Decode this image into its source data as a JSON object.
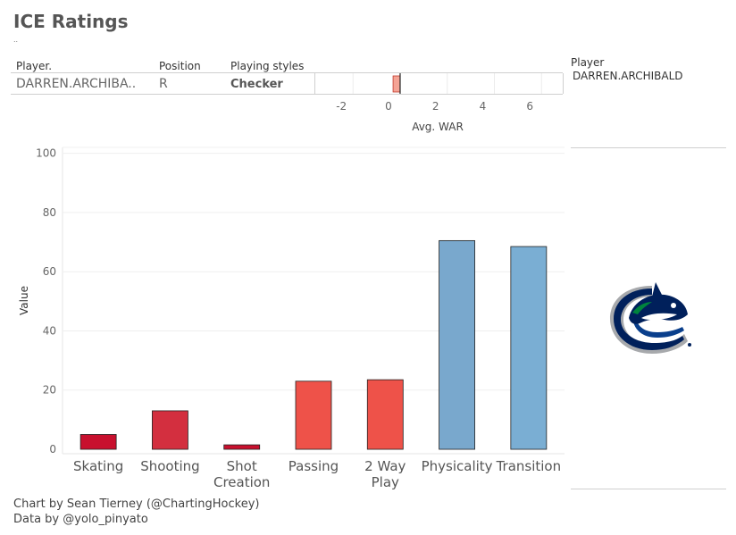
{
  "title": "ICE Ratings",
  "subtitle": "..",
  "table": {
    "headers": {
      "player": "Player.",
      "position": "Position",
      "playing_styles": "Playing styles"
    },
    "row": {
      "player": "DARREN.ARCHIBA..",
      "position": "R",
      "playing_style": "Checker"
    }
  },
  "war_chart": {
    "type": "bar",
    "xlabel": "Avg. WAR",
    "ticks": [
      -2,
      0,
      2,
      4,
      6
    ],
    "xlim": [
      -3.6,
      6.9
    ],
    "value": -0.3,
    "bar_color": "#f4a395",
    "bar_stroke": "#c0392b"
  },
  "side_panel": {
    "player_label": "Player",
    "player_name": "DARREN.ARCHIBALD",
    "logo_icon": "vancouver-canucks-orca-logo",
    "logo_colors": {
      "navy": "#00205b",
      "blue": "#0a3f8c",
      "green": "#00843d",
      "silver": "#a7a9ac"
    }
  },
  "chart_data": {
    "type": "bar",
    "categories": [
      "Skating",
      "Shooting",
      "Shot\nCreation",
      "Passing",
      "2 Way\nPlay",
      "Physicality",
      "Transition"
    ],
    "values": [
      5,
      13,
      1.5,
      23,
      23.5,
      70.5,
      68.5
    ],
    "colors": [
      "#c8102e",
      "#d32f3f",
      "#c8102e",
      "#ee5249",
      "#ee5249",
      "#79a8cd",
      "#7aaed3"
    ],
    "ylabel": "Value",
    "xlabel": "",
    "ylim": [
      -1.5,
      102
    ],
    "yticks": [
      0,
      20,
      40,
      60,
      80,
      100
    ],
    "grid": true
  },
  "credits": {
    "line1": "Chart by Sean Tierney (@ChartingHockey)",
    "line2": "Data by @yolo_pinyato"
  }
}
